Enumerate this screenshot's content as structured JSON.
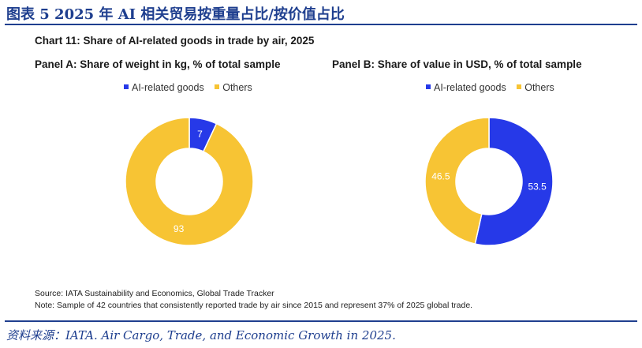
{
  "header": {
    "figure_title": "图表 5   2025 年 AI 相关贸易按重量占比/按价值占比"
  },
  "footer": {
    "source_text": "资料来源：IATA. Air Cargo, Trade, and Economic Growth in 2025."
  },
  "colors": {
    "ai_related": "#2639e8",
    "others": "#f7c434",
    "label_text": "#ffffff",
    "heading_blue": "#1f3f8f"
  },
  "chart_data": [
    {
      "type": "pie",
      "subtype": "donut",
      "chart_title": "Chart 11: Share of AI-related goods in trade by air, 2025",
      "title": "Panel A: Share of weight in kg, % of total sample",
      "legend": [
        "AI-related goods",
        "Others"
      ],
      "legend_position": "top",
      "categories": [
        "AI-related goods",
        "Others"
      ],
      "values": [
        7,
        93
      ],
      "labels": [
        "7",
        "93"
      ],
      "colors": [
        "#2639e8",
        "#f7c434"
      ]
    },
    {
      "type": "pie",
      "subtype": "donut",
      "title": "Panel B: Share of value in USD, % of total sample",
      "legend": [
        "AI-related goods",
        "Others"
      ],
      "legend_position": "top",
      "categories": [
        "AI-related goods",
        "Others"
      ],
      "values": [
        53.5,
        46.5
      ],
      "labels": [
        "53.5",
        "46.5"
      ],
      "colors": [
        "#2639e8",
        "#f7c434"
      ],
      "source": "Source: IATA Sustainability and Economics, Global Trade Tracker",
      "note": "Note: Sample of 42 countries that consistently reported trade by air since 2015 and represent 37% of 2025 global trade."
    }
  ]
}
